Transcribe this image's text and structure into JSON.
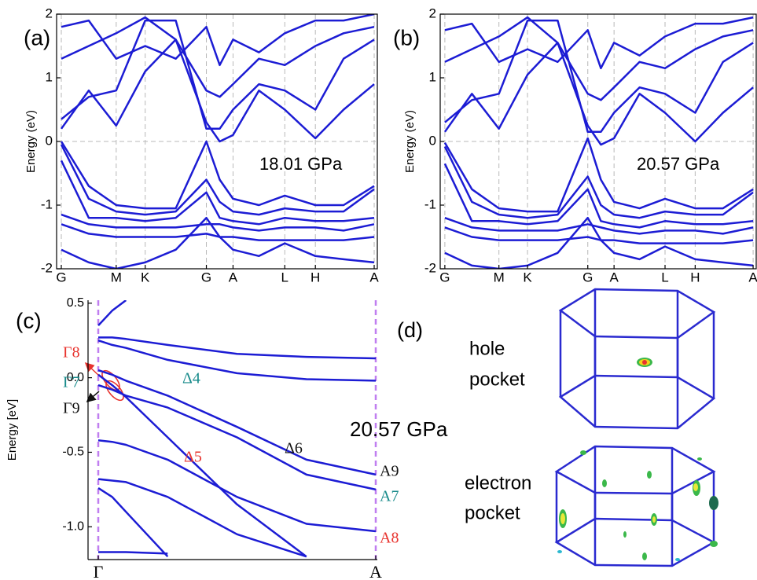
{
  "chart_data": [
    {
      "type": "line",
      "panel_label": "(a)",
      "ylabel": "Energy (eV)",
      "annotation": "18.01 GPa",
      "color": "#1c1cd4",
      "x": [
        0,
        35,
        70,
        107,
        146,
        185,
        202,
        219,
        252,
        285,
        324,
        360,
        399
      ],
      "series": [
        {
          "values": [
            0,
            -0.7,
            -1.0,
            -1.05,
            -1.05,
            0,
            -0.6,
            -0.9,
            -1.0,
            -0.85,
            -1.0,
            -1.0,
            -0.7
          ]
        },
        {
          "values": [
            -0.05,
            -0.9,
            -1.1,
            -1.15,
            -1.1,
            -0.6,
            -0.95,
            -1.1,
            -1.15,
            -1.05,
            -1.1,
            -1.1,
            -0.75
          ]
        },
        {
          "values": [
            -0.3,
            -1.2,
            -1.2,
            -1.25,
            -1.2,
            -0.8,
            -1.2,
            -1.25,
            -1.3,
            -1.2,
            -1.25,
            -1.25,
            -1.2
          ]
        },
        {
          "values": [
            -1.15,
            -1.3,
            -1.35,
            -1.35,
            -1.35,
            -1.3,
            -1.3,
            -1.35,
            -1.4,
            -1.35,
            -1.35,
            -1.4,
            -1.3
          ]
        },
        {
          "values": [
            -1.3,
            -1.45,
            -1.5,
            -1.5,
            -1.5,
            -1.45,
            -1.5,
            -1.5,
            -1.55,
            -1.55,
            -1.55,
            -1.55,
            -1.5
          ]
        },
        {
          "values": [
            -1.7,
            -1.9,
            -2.0,
            -1.9,
            -1.7,
            -1.2,
            -1.5,
            -1.7,
            -1.8,
            -1.6,
            -1.8,
            -1.85,
            -1.9
          ]
        },
        {
          "values": [
            0.2,
            0.8,
            0.25,
            1.1,
            1.6,
            0.3,
            0.0,
            0.1,
            0.8,
            0.5,
            0.05,
            0.5,
            0.9
          ]
        },
        {
          "values": [
            0.35,
            0.7,
            0.8,
            1.9,
            1.9,
            0.2,
            0.2,
            0.5,
            0.9,
            0.8,
            0.5,
            1.3,
            1.6
          ]
        },
        {
          "values": [
            1.3,
            1.5,
            1.7,
            1.95,
            1.6,
            0.8,
            0.7,
            0.9,
            1.3,
            1.2,
            1.5,
            1.7,
            1.8
          ]
        },
        {
          "values": [
            1.8,
            1.9,
            1.3,
            1.5,
            1.3,
            1.8,
            1.2,
            1.6,
            1.4,
            1.7,
            1.9,
            1.9,
            2.0
          ]
        }
      ],
      "xlim": [
        -6,
        403
      ],
      "ylim": [
        -2,
        2
      ],
      "xticks": [
        {
          "value": 0,
          "label": "G"
        },
        {
          "value": 70,
          "label": "M"
        },
        {
          "value": 107,
          "label": "K"
        },
        {
          "value": 185,
          "label": "G"
        },
        {
          "value": 219,
          "label": "A"
        },
        {
          "value": 285,
          "label": "L"
        },
        {
          "value": 324,
          "label": "H"
        },
        {
          "value": 399,
          "label": "A"
        }
      ],
      "yticks": [
        -2,
        -1,
        0,
        1,
        2
      ],
      "grid": true,
      "zero_line": true,
      "grid_color": "#b8b8b8"
    },
    {
      "type": "line",
      "panel_label": "(b)",
      "ylabel": "Energy (eV)",
      "annotation": "20.57 GPa",
      "color": "#1c1cd4",
      "x": [
        0,
        35,
        70,
        107,
        146,
        185,
        202,
        219,
        252,
        285,
        324,
        360,
        399
      ],
      "series": [
        {
          "values": [
            -0.02,
            -0.75,
            -1.05,
            -1.1,
            -1.1,
            0.05,
            -0.6,
            -0.95,
            -1.05,
            -0.9,
            -1.05,
            -1.05,
            -0.75
          ]
        },
        {
          "values": [
            -0.08,
            -0.95,
            -1.15,
            -1.2,
            -1.15,
            -0.55,
            -1.0,
            -1.15,
            -1.2,
            -1.1,
            -1.15,
            -1.15,
            -0.8
          ]
        },
        {
          "values": [
            -0.35,
            -1.25,
            -1.25,
            -1.3,
            -1.25,
            -0.75,
            -1.25,
            -1.3,
            -1.35,
            -1.25,
            -1.3,
            -1.3,
            -1.25
          ]
        },
        {
          "values": [
            -1.2,
            -1.35,
            -1.4,
            -1.4,
            -1.4,
            -1.3,
            -1.35,
            -1.4,
            -1.45,
            -1.4,
            -1.4,
            -1.45,
            -1.35
          ]
        },
        {
          "values": [
            -1.35,
            -1.5,
            -1.55,
            -1.55,
            -1.55,
            -1.5,
            -1.55,
            -1.55,
            -1.6,
            -1.6,
            -1.6,
            -1.6,
            -1.55
          ]
        },
        {
          "values": [
            -1.75,
            -1.95,
            -2.0,
            -1.95,
            -1.75,
            -1.2,
            -1.55,
            -1.75,
            -1.85,
            -1.65,
            -1.85,
            -1.9,
            -1.95
          ]
        },
        {
          "values": [
            0.15,
            0.75,
            0.2,
            1.05,
            1.55,
            0.25,
            -0.05,
            0.05,
            0.75,
            0.45,
            0.0,
            0.45,
            0.85
          ]
        },
        {
          "values": [
            0.3,
            0.65,
            0.75,
            1.9,
            1.9,
            0.15,
            0.15,
            0.45,
            0.85,
            0.75,
            0.45,
            1.25,
            1.55
          ]
        },
        {
          "values": [
            1.25,
            1.45,
            1.65,
            1.95,
            1.55,
            0.75,
            0.65,
            0.85,
            1.25,
            1.15,
            1.45,
            1.65,
            1.75
          ]
        },
        {
          "values": [
            1.75,
            1.85,
            1.25,
            1.45,
            1.25,
            1.75,
            1.15,
            1.55,
            1.35,
            1.65,
            1.85,
            1.85,
            1.95
          ]
        }
      ],
      "xlim": [
        -6,
        403
      ],
      "ylim": [
        -2,
        2
      ],
      "xticks": [
        {
          "value": 0,
          "label": "G"
        },
        {
          "value": 70,
          "label": "M"
        },
        {
          "value": 107,
          "label": "K"
        },
        {
          "value": 185,
          "label": "G"
        },
        {
          "value": 219,
          "label": "A"
        },
        {
          "value": 285,
          "label": "L"
        },
        {
          "value": 324,
          "label": "H"
        },
        {
          "value": 399,
          "label": "A"
        }
      ],
      "yticks": [
        -2,
        -1,
        0,
        1,
        2
      ],
      "grid": true,
      "zero_line": true,
      "grid_color": "#b8b8b8"
    },
    {
      "type": "line",
      "panel_label": "(c)",
      "ylabel": "Energy [eV]",
      "annotation": "20.57 GPa",
      "color": "#1c1cd4",
      "x": [
        0,
        0.05,
        0.1,
        0.25,
        0.5,
        0.75,
        1
      ],
      "series": [
        {
          "values": [
            0.35,
            0.45,
            0.52,
            null,
            null,
            null,
            null
          ]
        },
        {
          "values": [
            0.27,
            0.27,
            0.26,
            0.22,
            0.16,
            0.14,
            0.13
          ]
        },
        {
          "values": [
            0.25,
            0.22,
            0.2,
            0.12,
            0.03,
            -0.01,
            -0.02
          ]
        },
        {
          "values": [
            0.05,
            0.02,
            -0.02,
            -0.12,
            -0.33,
            -0.55,
            -0.65
          ]
        },
        {
          "values": [
            -0.05,
            -0.08,
            -0.12,
            -0.2,
            -0.4,
            -0.65,
            -0.75
          ]
        },
        {
          "values": [
            0.02,
            -0.05,
            -0.13,
            -0.4,
            -0.85,
            -1.2,
            null
          ]
        },
        {
          "values": [
            -0.42,
            -0.43,
            -0.45,
            -0.55,
            -0.8,
            -0.98,
            -1.03
          ]
        },
        {
          "values": [
            -0.68,
            -0.69,
            -0.7,
            -0.8,
            -1.05,
            -1.2,
            null
          ]
        },
        {
          "values": [
            -0.74,
            -0.8,
            -0.9,
            -1.2,
            null,
            null,
            null
          ]
        },
        {
          "values": [
            -1.17,
            -1.17,
            -1.17,
            -1.18,
            null,
            null,
            null
          ]
        }
      ],
      "xlim": [
        0,
        1
      ],
      "ylim": [
        -1.22,
        0.52
      ],
      "xticks": [
        {
          "value": 0,
          "label": "Γ"
        },
        {
          "value": 1,
          "label": "A"
        }
      ],
      "yticks": [
        0.5,
        {
          "value": 0,
          "label": "0.0"
        },
        -0.5,
        {
          "value": -1,
          "label": "-1.0"
        }
      ],
      "grid": true,
      "zero_line": false,
      "grid_color": "#c07ef0",
      "annotations": [
        {
          "text": "Γ8",
          "color": "#e8332e"
        },
        {
          "text": "Γ7",
          "color": "#178a8a"
        },
        {
          "text": "Γ9",
          "color": "#111111"
        },
        {
          "text": "Δ4",
          "color": "#178a8a"
        },
        {
          "text": "Δ5",
          "color": "#e8332e"
        },
        {
          "text": "Δ6",
          "color": "#111111"
        },
        {
          "text": "A9",
          "color": "#111111"
        },
        {
          "text": "A7",
          "color": "#178a8a"
        },
        {
          "text": "A8",
          "color": "#e8332e"
        }
      ]
    }
  ],
  "panel_d": {
    "label": "(d)",
    "hole_label": [
      "hole",
      "pocket"
    ],
    "electron_label": [
      "electron",
      "pocket"
    ]
  }
}
